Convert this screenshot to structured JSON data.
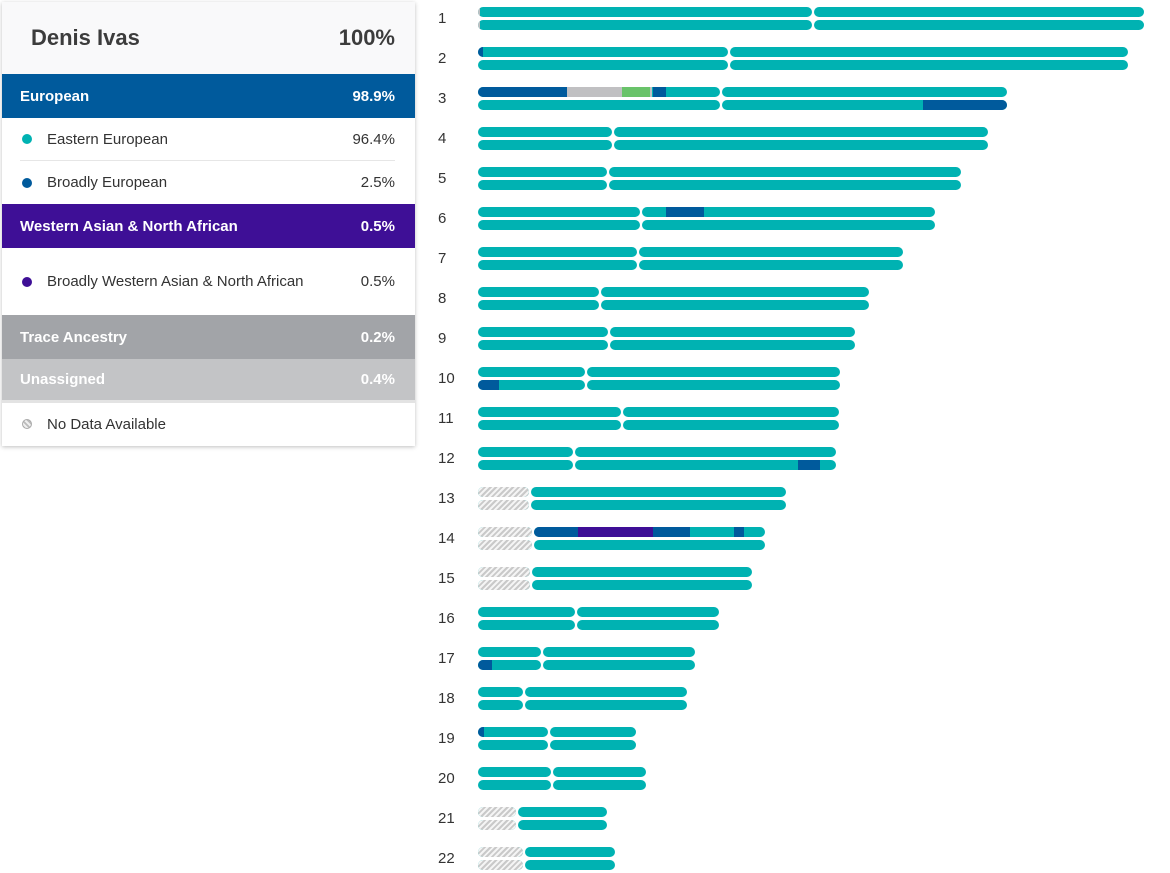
{
  "profile": {
    "name": "Denis Ivas",
    "total": "100%"
  },
  "colors": {
    "eastern_european": "#00b2b2",
    "broadly_european": "#005a9c",
    "broadly_wana": "#3e0f96",
    "trace": "#a2a4a8",
    "unassigned": "#c0c0c2",
    "green_trace": "#69c36a"
  },
  "categories": {
    "european": {
      "label": "European",
      "pct": "98.9%"
    },
    "eastern_european": {
      "label": "Eastern European",
      "pct": "96.4%"
    },
    "broadly_european": {
      "label": "Broadly European",
      "pct": "2.5%"
    },
    "wana": {
      "label": "Western Asian & North African",
      "pct": "0.5%"
    },
    "broadly_wana": {
      "label": "Broadly Western Asian & North African",
      "pct": "0.5%"
    },
    "trace": {
      "label": "Trace Ancestry",
      "pct": "0.2%"
    },
    "unassigned": {
      "label": "Unassigned",
      "pct": "0.4%"
    },
    "no_data": {
      "label": "No Data Available"
    }
  },
  "chromosomes": [
    {
      "n": "1"
    },
    {
      "n": "2"
    },
    {
      "n": "3"
    },
    {
      "n": "4"
    },
    {
      "n": "5"
    },
    {
      "n": "6"
    },
    {
      "n": "7"
    },
    {
      "n": "8"
    },
    {
      "n": "9"
    },
    {
      "n": "10"
    },
    {
      "n": "11"
    },
    {
      "n": "12"
    },
    {
      "n": "13"
    },
    {
      "n": "14"
    },
    {
      "n": "15"
    },
    {
      "n": "16"
    },
    {
      "n": "17"
    },
    {
      "n": "18"
    },
    {
      "n": "19"
    },
    {
      "n": "20"
    },
    {
      "n": "21"
    },
    {
      "n": "22"
    }
  ]
}
